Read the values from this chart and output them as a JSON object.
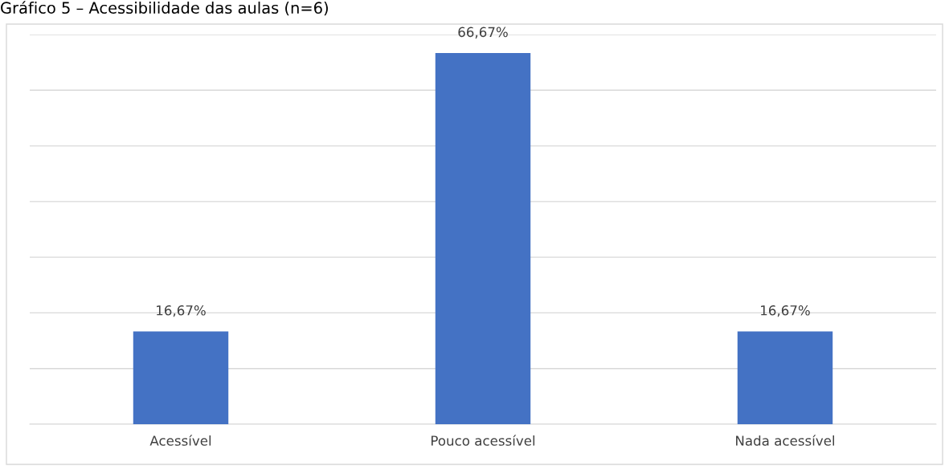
{
  "chart_data": {
    "type": "bar",
    "title": "Gráfico 5 – Acessibilidade das aulas (n=6)",
    "categories": [
      "Acessível",
      "Pouco acessível",
      "Nada acessível"
    ],
    "values": [
      16.67,
      66.67,
      16.67
    ],
    "value_labels": [
      "16,67%",
      "66,67%",
      "16,67%"
    ],
    "color": "#4472c4",
    "ylim": [
      0,
      70
    ],
    "yticks": [
      {
        "value": 0,
        "label": null
      },
      {
        "value": 10,
        "label": null
      },
      {
        "value": 20,
        "label": null
      },
      {
        "value": 30,
        "label": null
      },
      {
        "value": 40,
        "label": null
      },
      {
        "value": 50,
        "label": null
      },
      {
        "value": 60,
        "label": null
      },
      {
        "value": 70,
        "label": null
      }
    ],
    "grid": "y",
    "tick_labels": "x"
  }
}
